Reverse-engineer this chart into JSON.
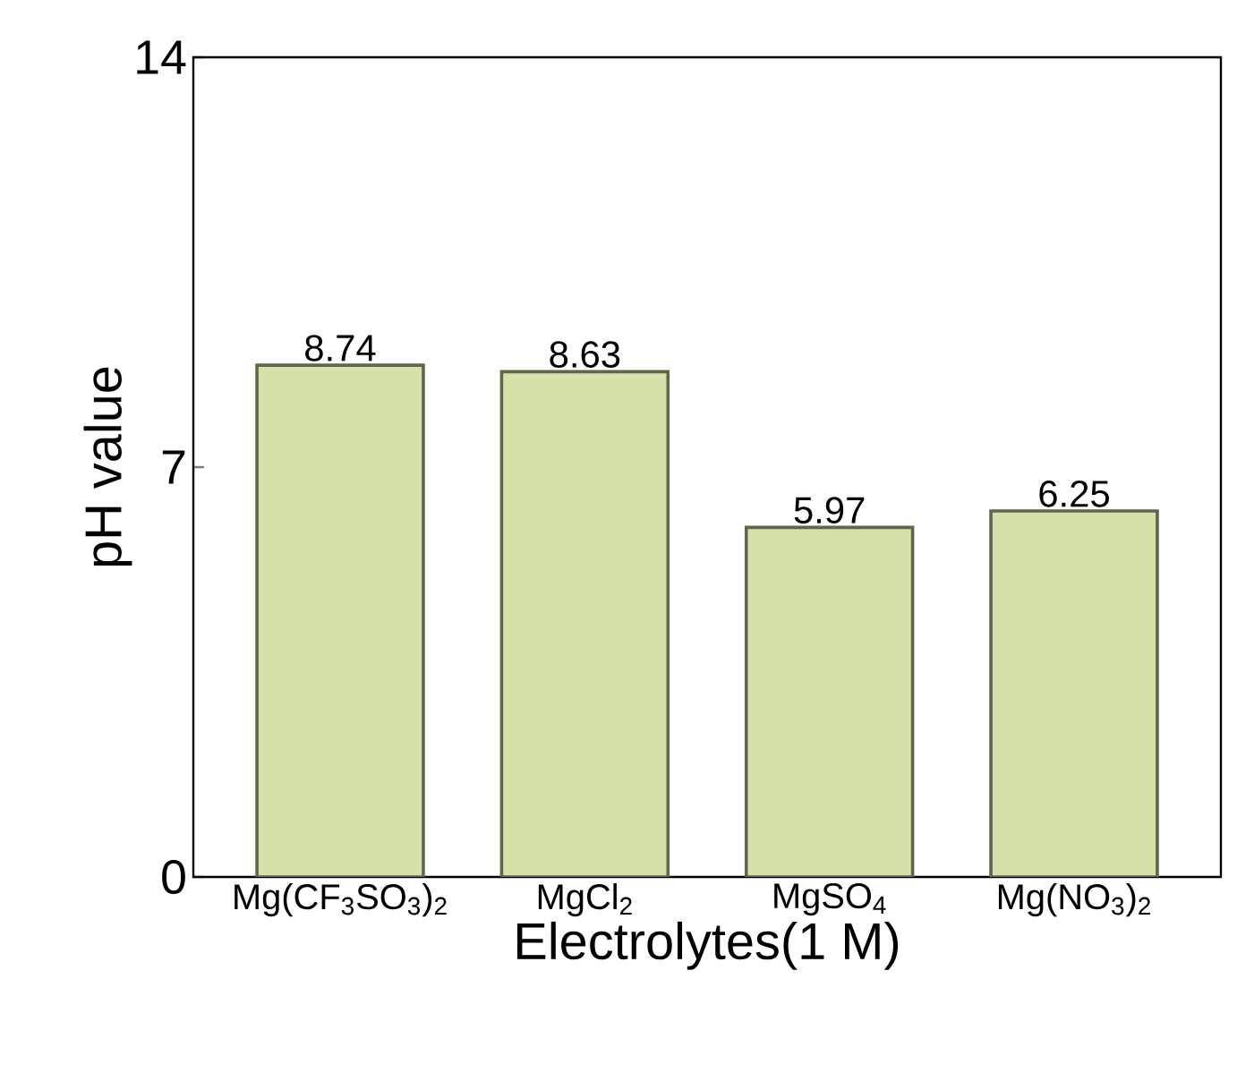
{
  "chart_data": {
    "type": "bar",
    "xlabel": "Electrolytes(1 M)",
    "ylabel": "pH value",
    "categories": [
      "Mg(CF$_{3}$SO$_{3}$)$_{2}$",
      "MgCl$_{2}$",
      "MgSO$_{4}$",
      "Mg(NO$_{3}$)$_{2}$"
    ],
    "values": [
      8.74,
      8.63,
      5.97,
      6.25
    ],
    "color": "#d4e2aa",
    "ylim": [
      0,
      14
    ],
    "yticks": [
      0,
      7,
      14
    ],
    "data_labels": true
  }
}
